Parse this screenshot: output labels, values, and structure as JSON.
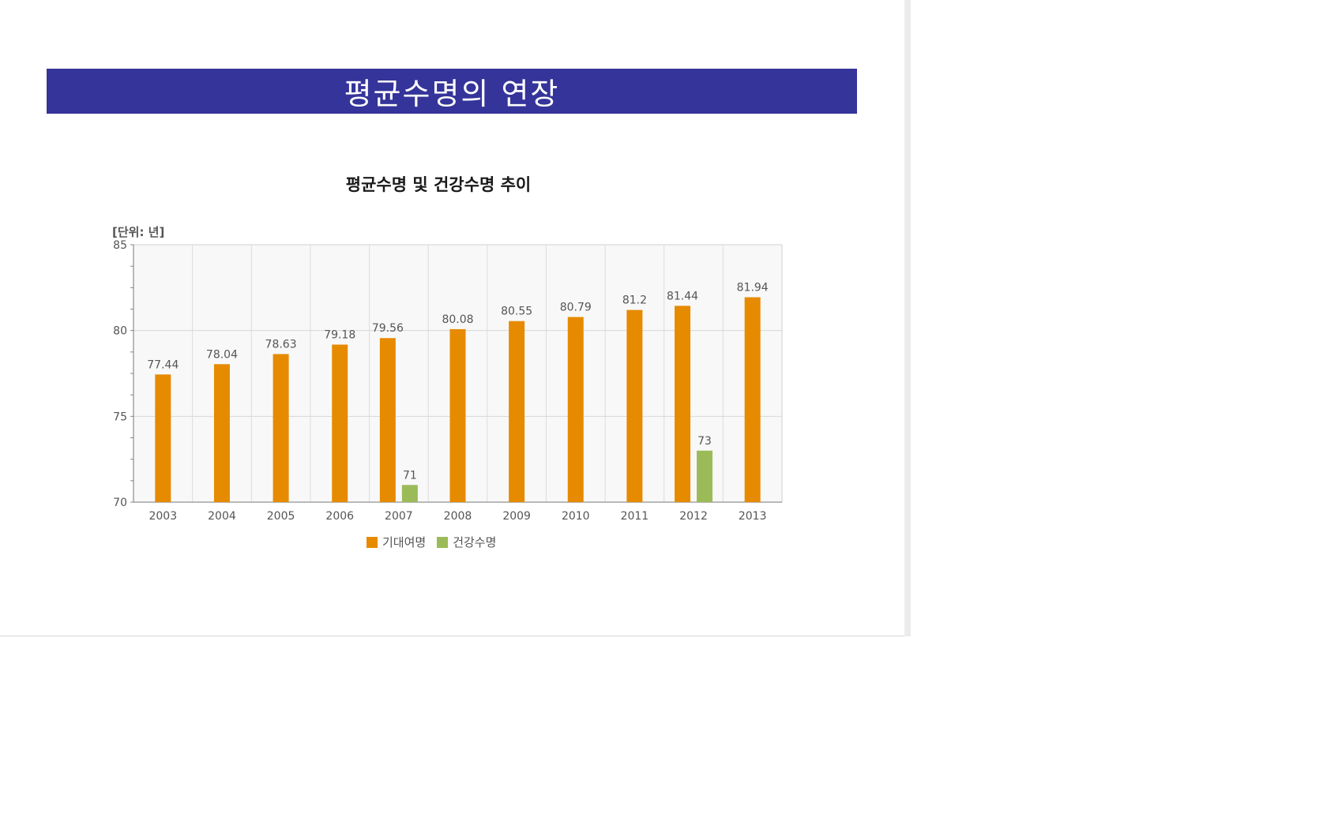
{
  "slide": {
    "title": "평균수명의 연장"
  },
  "chart_data": {
    "type": "bar",
    "title": "평균수명 및 건강수명 추이",
    "unit_label": "[단위: 년]",
    "categories": [
      "2003",
      "2004",
      "2005",
      "2006",
      "2007",
      "2008",
      "2009",
      "2010",
      "2011",
      "2012",
      "2013"
    ],
    "series": [
      {
        "name": "기대여명",
        "color": "#e68a00",
        "values": [
          77.44,
          78.04,
          78.63,
          79.18,
          79.56,
          80.08,
          80.55,
          80.79,
          81.2,
          81.44,
          81.94
        ],
        "labels": [
          "77.44",
          "78.04",
          "78.63",
          "79.18",
          "79.56",
          "80.08",
          "80.55",
          "80.79",
          "81.2",
          "81.44",
          "81.94"
        ]
      },
      {
        "name": "건강수명",
        "color": "#9bbb59",
        "values": [
          null,
          null,
          null,
          null,
          71,
          null,
          null,
          null,
          null,
          73,
          null
        ],
        "labels": [
          null,
          null,
          null,
          null,
          "71",
          null,
          null,
          null,
          null,
          "73",
          null
        ]
      }
    ],
    "ylim": [
      70,
      85
    ],
    "yticks": [
      "70",
      "75",
      "80",
      "85"
    ],
    "grid": true,
    "legend_position": "bottom"
  }
}
